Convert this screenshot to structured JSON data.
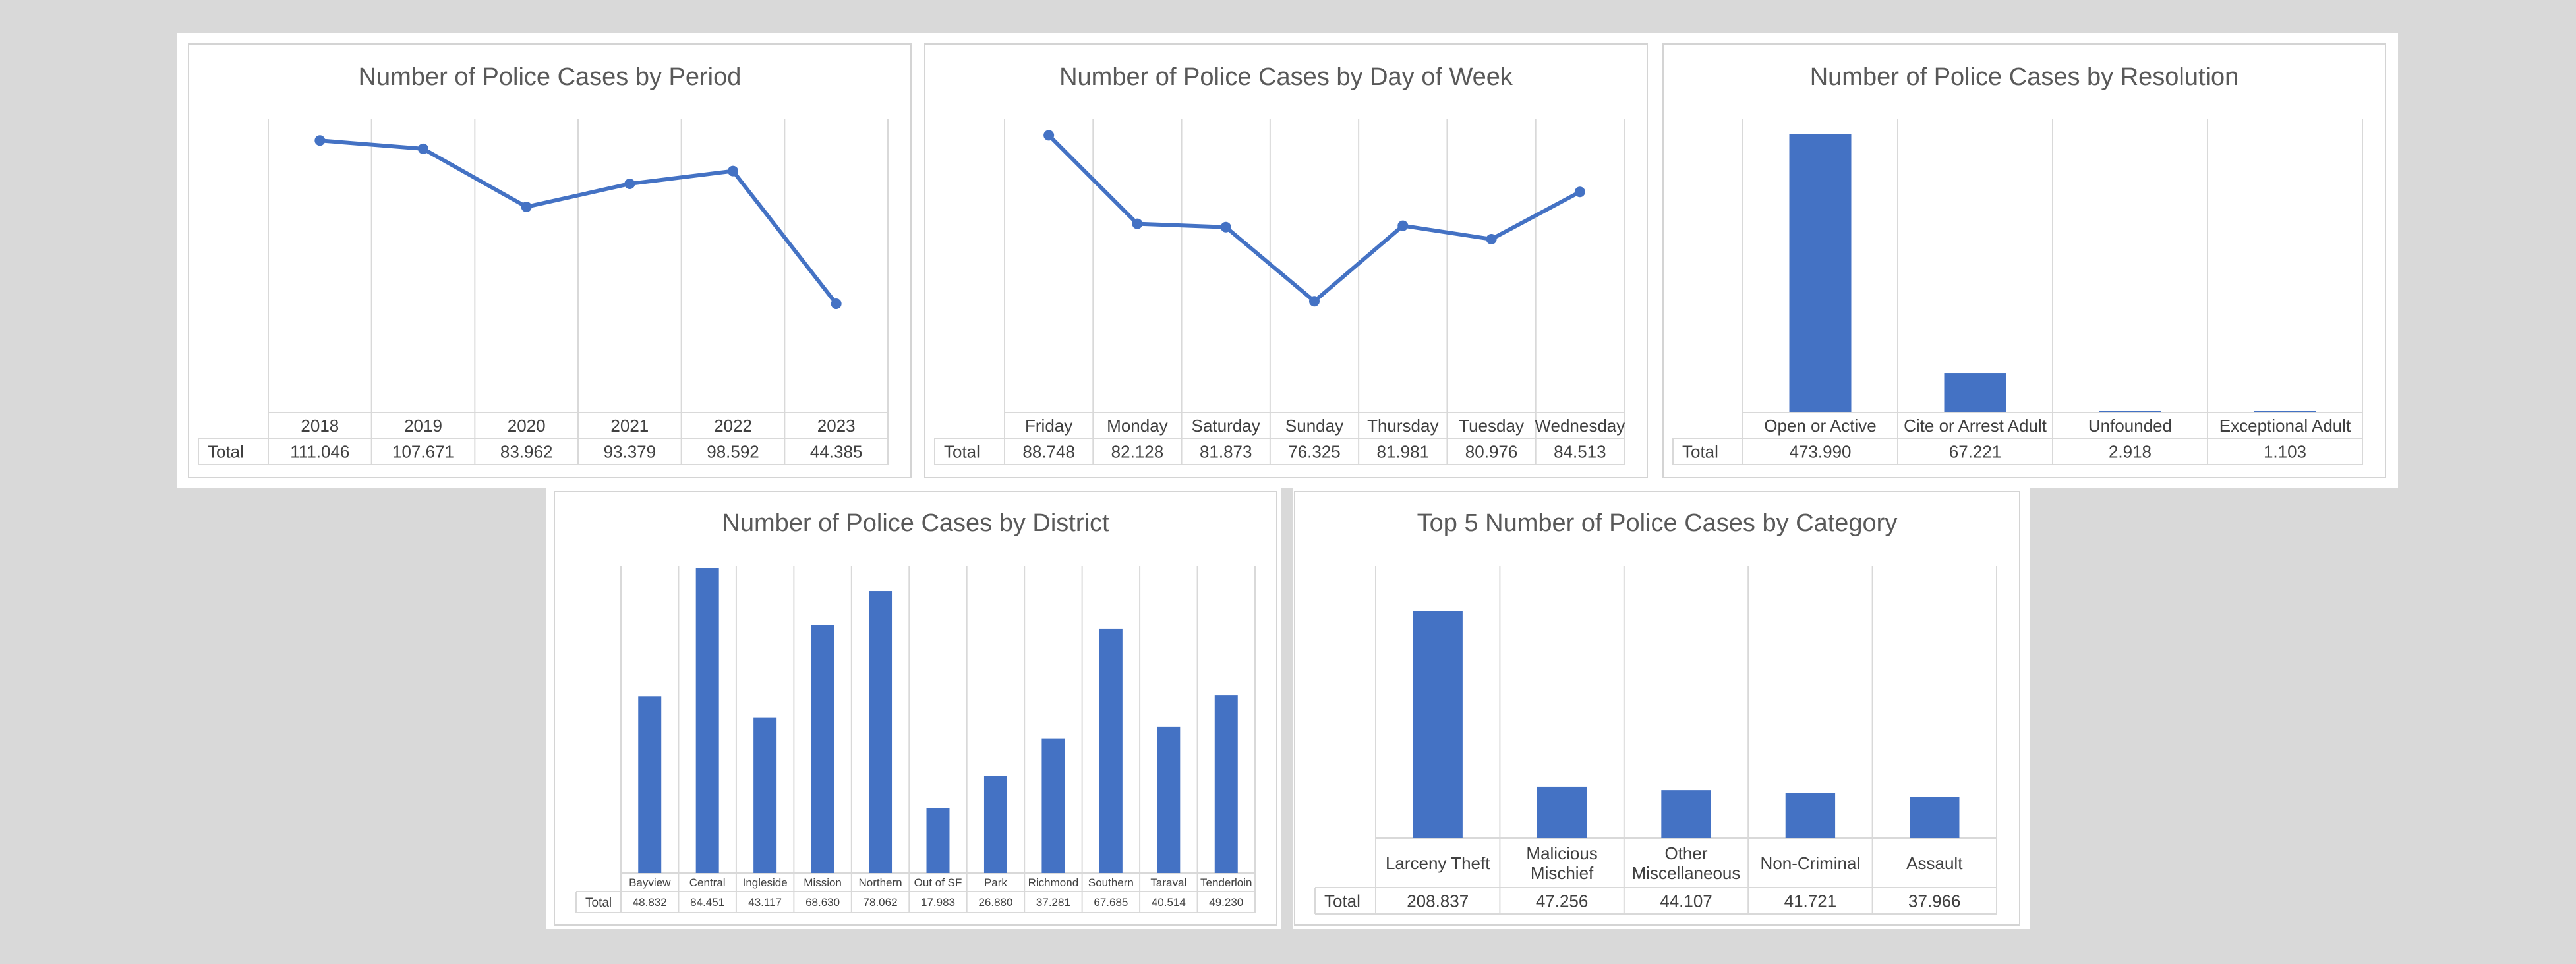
{
  "colors": {
    "series": "#4472c4",
    "grid": "#d9d9d9",
    "background": "#d9d9d9"
  },
  "total_label": "Total",
  "chart_data": [
    {
      "id": "period",
      "type": "line",
      "title": "Number of Police Cases by Period",
      "categories": [
        "2018",
        "2019",
        "2020",
        "2021",
        "2022",
        "2023"
      ],
      "values": [
        111046,
        107671,
        83962,
        93379,
        98592,
        44385
      ],
      "value_labels": [
        "111.046",
        "107.671",
        "83.962",
        "93.379",
        "98.592",
        "44.385"
      ],
      "ylim": [
        0,
        120000
      ],
      "grid": true
    },
    {
      "id": "weekday",
      "type": "line",
      "title": "Number of Police Cases by Day of Week",
      "categories": [
        "Friday",
        "Monday",
        "Saturday",
        "Sunday",
        "Thursday",
        "Tuesday",
        "Wednesday"
      ],
      "values": [
        88748,
        82128,
        81873,
        76325,
        81981,
        80976,
        84513
      ],
      "value_labels": [
        "88.748",
        "82.128",
        "81.873",
        "76.325",
        "81.981",
        "80.976",
        "84.513"
      ],
      "ylim": [
        68000,
        90000
      ],
      "grid": true
    },
    {
      "id": "resolution",
      "type": "bar",
      "title": "Number of Police Cases by Resolution",
      "categories": [
        "Open or Active",
        "Cite or Arrest Adult",
        "Unfounded",
        "Exceptional Adult"
      ],
      "values": [
        473990,
        67221,
        2918,
        1103
      ],
      "value_labels": [
        "473.990",
        "67.221",
        "2.918",
        "1.103"
      ],
      "ylim": [
        0,
        500000
      ],
      "grid": true
    },
    {
      "id": "district",
      "type": "bar",
      "title": "Number of Police Cases by District",
      "categories": [
        "Bayview",
        "Central",
        "Ingleside",
        "Mission",
        "Northern",
        "Out of SF",
        "Park",
        "Richmond",
        "Southern",
        "Taraval",
        "Tenderloin"
      ],
      "values": [
        48832,
        84451,
        43117,
        68630,
        78062,
        17983,
        26880,
        37281,
        67685,
        40514,
        49230
      ],
      "value_labels": [
        "48.832",
        "84.451",
        "43.117",
        "68.630",
        "78.062",
        "17.983",
        "26.880",
        "37.281",
        "67.685",
        "40.514",
        "49.230"
      ],
      "ylim": [
        0,
        85000
      ],
      "grid": true
    },
    {
      "id": "category",
      "type": "bar",
      "title": "Top 5 Number of Police Cases by Category",
      "categories": [
        [
          "Larceny Theft"
        ],
        [
          "Malicious",
          "Mischief"
        ],
        [
          "Other",
          "Miscellaneous"
        ],
        [
          "Non-Criminal"
        ],
        [
          "Assault"
        ]
      ],
      "values": [
        208837,
        47256,
        44107,
        41721,
        37966
      ],
      "value_labels": [
        "208.837",
        "47.256",
        "44.107",
        "41.721",
        "37.966"
      ],
      "ylim": [
        0,
        250000
      ],
      "grid": true
    }
  ]
}
